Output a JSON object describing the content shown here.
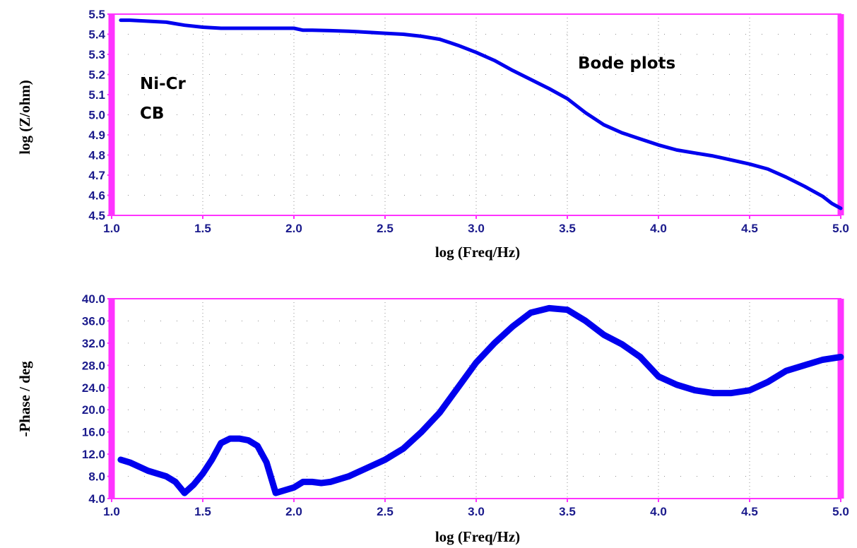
{
  "colors": {
    "frame": "#ff33ff",
    "line": "#0000ee",
    "ticks": "#1a1a8c",
    "grid": "#909090"
  },
  "annotations": {
    "sample_line1": "Ni-Cr",
    "sample_line2": "CB",
    "plot_label": "Bode plots"
  },
  "chart_data": [
    {
      "type": "line",
      "xlabel": "log (Freq/Hz)",
      "ylabel": "log (Z/ohm)",
      "xlim": [
        1.0,
        5.0
      ],
      "ylim": [
        4.5,
        5.5
      ],
      "xticks": [
        "1.0",
        "1.5",
        "2.0",
        "2.5",
        "3.0",
        "3.5",
        "4.0",
        "4.5",
        "5.0"
      ],
      "yticks": [
        "4.5",
        "4.6",
        "4.7",
        "4.8",
        "4.9",
        "5.0",
        "5.1",
        "5.2",
        "5.3",
        "5.4",
        "5.5"
      ],
      "grid": "dotted",
      "series": [
        {
          "x": [
            1.05,
            1.1,
            1.2,
            1.3,
            1.4,
            1.5,
            1.6,
            1.7,
            1.8,
            1.9,
            2.0,
            2.05,
            2.1,
            2.2,
            2.3,
            2.4,
            2.5,
            2.6,
            2.7,
            2.8,
            2.9,
            3.0,
            3.1,
            3.2,
            3.3,
            3.4,
            3.5,
            3.6,
            3.7,
            3.8,
            3.9,
            4.0,
            4.1,
            4.2,
            4.3,
            4.4,
            4.5,
            4.6,
            4.7,
            4.8,
            4.9,
            4.95,
            5.0
          ],
          "y": [
            5.47,
            5.47,
            5.465,
            5.46,
            5.445,
            5.435,
            5.43,
            5.43,
            5.43,
            5.43,
            5.43,
            5.42,
            5.42,
            5.418,
            5.415,
            5.41,
            5.405,
            5.4,
            5.39,
            5.375,
            5.345,
            5.31,
            5.27,
            5.22,
            5.175,
            5.13,
            5.08,
            5.01,
            4.95,
            4.91,
            4.88,
            4.85,
            4.825,
            4.81,
            4.795,
            4.775,
            4.755,
            4.73,
            4.69,
            4.645,
            4.595,
            4.56,
            4.535
          ]
        }
      ]
    },
    {
      "type": "line",
      "xlabel": "log (Freq/Hz)",
      "ylabel": "-Phase / deg",
      "xlim": [
        1.0,
        5.0
      ],
      "ylim": [
        4.0,
        40.0
      ],
      "xticks": [
        "1.0",
        "1.5",
        "2.0",
        "2.5",
        "3.0",
        "3.5",
        "4.0",
        "4.5",
        "5.0"
      ],
      "yticks": [
        "4.0",
        "8.0",
        "12.0",
        "16.0",
        "20.0",
        "24.0",
        "28.0",
        "32.0",
        "36.0",
        "40.0"
      ],
      "grid": "dotted",
      "series": [
        {
          "x": [
            1.05,
            1.1,
            1.2,
            1.3,
            1.35,
            1.4,
            1.45,
            1.5,
            1.55,
            1.6,
            1.65,
            1.7,
            1.75,
            1.8,
            1.85,
            1.9,
            1.95,
            2.0,
            2.05,
            2.1,
            2.15,
            2.2,
            2.3,
            2.4,
            2.5,
            2.6,
            2.7,
            2.8,
            2.9,
            3.0,
            3.1,
            3.2,
            3.3,
            3.4,
            3.5,
            3.6,
            3.7,
            3.8,
            3.9,
            4.0,
            4.1,
            4.2,
            4.3,
            4.4,
            4.5,
            4.6,
            4.7,
            4.8,
            4.9,
            5.0
          ],
          "y": [
            11.0,
            10.5,
            9.0,
            8.0,
            7.0,
            5.0,
            6.5,
            8.5,
            11.0,
            14.0,
            14.8,
            14.8,
            14.5,
            13.5,
            10.5,
            5.0,
            5.5,
            6.0,
            7.0,
            7.0,
            6.8,
            7.0,
            8.0,
            9.5,
            11.0,
            13.0,
            16.0,
            19.5,
            24.0,
            28.5,
            32.0,
            35.0,
            37.5,
            38.3,
            38.0,
            36.0,
            33.5,
            31.8,
            29.5,
            26.0,
            24.5,
            23.5,
            23.0,
            23.0,
            23.5,
            25.0,
            27.0,
            28.0,
            29.0,
            29.5
          ]
        }
      ]
    }
  ]
}
